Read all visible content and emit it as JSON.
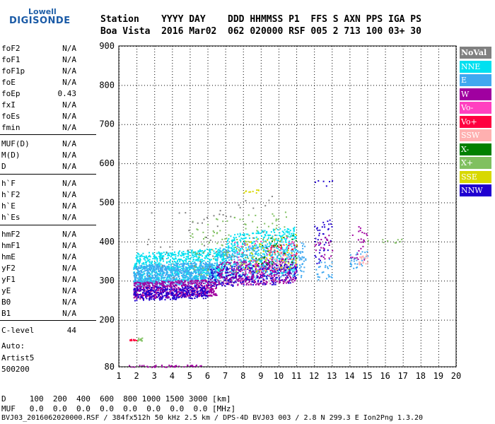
{
  "logo": {
    "line1": "Lowell",
    "line2": "DIGISONDE"
  },
  "header": {
    "line1": "Station    YYYY DAY    DDD HHMMSS P1  FFS S AXN PPS IGA PS",
    "line2": "Boa Vista  2016 Mar02  062 020000 RSF 005 2 713 100 03+ 30"
  },
  "params": [
    {
      "name": "foF2",
      "value": "N/A"
    },
    {
      "name": "foF1",
      "value": "N/A"
    },
    {
      "name": "foF1p",
      "value": "N/A"
    },
    {
      "name": "foE",
      "value": "N/A"
    },
    {
      "name": "foEp",
      "value": "0.43"
    },
    {
      "name": "fxI",
      "value": "N/A"
    },
    {
      "name": "foEs",
      "value": "N/A"
    },
    {
      "name": "fmin",
      "value": "N/A"
    },
    {
      "name": "MUF(D)",
      "value": "N/A"
    },
    {
      "name": "M(D)",
      "value": "N/A"
    },
    {
      "name": "D",
      "value": "N/A"
    },
    {
      "name": "h`F",
      "value": "N/A"
    },
    {
      "name": "h`F2",
      "value": "N/A"
    },
    {
      "name": "h`E",
      "value": "N/A"
    },
    {
      "name": "h`Es",
      "value": "N/A"
    },
    {
      "name": "hmF2",
      "value": "N/A"
    },
    {
      "name": "hmF1",
      "value": "N/A"
    },
    {
      "name": "hmE",
      "value": "N/A"
    },
    {
      "name": "yF2",
      "value": "N/A"
    },
    {
      "name": "yF1",
      "value": "N/A"
    },
    {
      "name": "yE",
      "value": "N/A"
    },
    {
      "name": "B0",
      "value": "N/A"
    },
    {
      "name": "B1",
      "value": "N/A"
    },
    {
      "name": "C-level",
      "value": "44"
    }
  ],
  "auto": {
    "line1": "Auto:",
    "line2": "Artist5",
    "line3": "500200"
  },
  "legend": [
    {
      "label": "NoVal",
      "color": "#808080"
    },
    {
      "label": "NNE",
      "color": "#00e0f0"
    },
    {
      "label": "E",
      "color": "#40a8f0"
    },
    {
      "label": "W",
      "color": "#a000a0"
    },
    {
      "label": "Vo-",
      "color": "#ff40c0"
    },
    {
      "label": "Vo+",
      "color": "#ff0040"
    },
    {
      "label": "SSW",
      "color": "#ffb0b0"
    },
    {
      "label": "X-",
      "color": "#008000"
    },
    {
      "label": "X+",
      "color": "#80c060"
    },
    {
      "label": "SSE",
      "color": "#d8d800"
    },
    {
      "label": "NNW",
      "color": "#2000d0"
    }
  ],
  "footer": {
    "line1": "D     100  200  400  600  800 1000 1500 3000 [km]",
    "line2": "MUF   0.0  0.0  0.0  0.0  0.0  0.0  0.0  0.0 [MHz]",
    "line3": "BVJ03_2016062020000.RSF / 384fx512h 50 kHz 2.5 km / DPS-4D BVJ03 003 / 2.8 N 299.3 E Ion2Png 1.3.20"
  },
  "chart_data": {
    "type": "scatter",
    "xlim": [
      1,
      20
    ],
    "ylim": [
      80,
      900
    ],
    "xticks": [
      1,
      2,
      3,
      4,
      5,
      6,
      7,
      8,
      9,
      10,
      11,
      12,
      13,
      14,
      15,
      16,
      17,
      18,
      19,
      20
    ],
    "yticks": [
      80,
      200,
      300,
      400,
      500,
      600,
      700,
      800,
      900
    ],
    "clusters": [
      {
        "series": "NNE",
        "x": [
          1.8,
          7.0
        ],
        "y": [
          295,
          385
        ],
        "n": 900
      },
      {
        "series": "NNE",
        "x": [
          7.0,
          11.0
        ],
        "y": [
          300,
          440
        ],
        "n": 500
      },
      {
        "series": "E",
        "x": [
          1.8,
          6.5
        ],
        "y": [
          285,
          350
        ],
        "n": 700
      },
      {
        "series": "E",
        "x": [
          6.5,
          11.5
        ],
        "y": [
          295,
          400
        ],
        "n": 400
      },
      {
        "series": "W",
        "x": [
          1.8,
          6.5
        ],
        "y": [
          255,
          305
        ],
        "n": 600
      },
      {
        "series": "W",
        "x": [
          6.5,
          11.0
        ],
        "y": [
          285,
          360
        ],
        "n": 400
      },
      {
        "series": "NNW",
        "x": [
          1.8,
          6.0
        ],
        "y": [
          250,
          290
        ],
        "n": 300
      },
      {
        "series": "NNW",
        "x": [
          6.0,
          11.0
        ],
        "y": [
          285,
          345
        ],
        "n": 200
      },
      {
        "series": "X+",
        "x": [
          5.0,
          10.5
        ],
        "y": [
          310,
          480
        ],
        "n": 120
      },
      {
        "series": "SSE",
        "x": [
          8.0,
          11.0
        ],
        "y": [
          320,
          420
        ],
        "n": 60
      },
      {
        "series": "Vo-",
        "x": [
          7.5,
          11.0
        ],
        "y": [
          300,
          420
        ],
        "n": 60
      },
      {
        "series": "Vo+",
        "x": [
          9.5,
          11.0
        ],
        "y": [
          360,
          400
        ],
        "n": 25
      },
      {
        "series": "SSW",
        "x": [
          9.5,
          11.0
        ],
        "y": [
          330,
          380
        ],
        "n": 30
      },
      {
        "series": "X-",
        "x": [
          8.5,
          11.0
        ],
        "y": [
          330,
          420
        ],
        "n": 30
      },
      {
        "series": "NoVal",
        "x": [
          2.5,
          10.0
        ],
        "y": [
          300,
          520
        ],
        "n": 60
      },
      {
        "series": "NNW",
        "x": [
          12.0,
          13.0
        ],
        "y": [
          340,
          460
        ],
        "n": 40
      },
      {
        "series": "E",
        "x": [
          12.0,
          13.0
        ],
        "y": [
          300,
          360
        ],
        "n": 30
      },
      {
        "series": "W",
        "x": [
          12.0,
          13.0
        ],
        "y": [
          350,
          420
        ],
        "n": 25
      },
      {
        "series": "E",
        "x": [
          14.0,
          15.0
        ],
        "y": [
          330,
          380
        ],
        "n": 30
      },
      {
        "series": "W",
        "x": [
          14.0,
          15.0
        ],
        "y": [
          340,
          450
        ],
        "n": 25
      },
      {
        "series": "SSW",
        "x": [
          14.5,
          15.0
        ],
        "y": [
          340,
          370
        ],
        "n": 20
      },
      {
        "series": "X+",
        "x": [
          15.0,
          17.3
        ],
        "y": [
          395,
          410
        ],
        "n": 10
      },
      {
        "series": "SSE",
        "x": [
          8.0,
          9.2
        ],
        "y": [
          525,
          535
        ],
        "n": 10
      },
      {
        "series": "NNW",
        "x": [
          12.0,
          13.0
        ],
        "y": [
          540,
          560
        ],
        "n": 6
      },
      {
        "series": "Vo+",
        "x": [
          1.6,
          2.0
        ],
        "y": [
          148,
          152
        ],
        "n": 12
      },
      {
        "series": "X+",
        "x": [
          2.0,
          2.4
        ],
        "y": [
          146,
          156
        ],
        "n": 12
      },
      {
        "series": "W",
        "x": [
          1.5,
          5.7
        ],
        "y": [
          80,
          86
        ],
        "n": 40
      }
    ]
  }
}
